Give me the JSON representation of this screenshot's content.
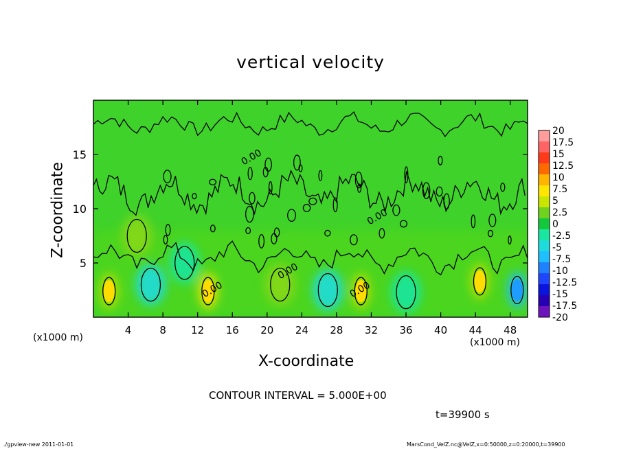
{
  "chart_data": {
    "type": "heatmap",
    "title": "vertical velocity",
    "xlabel": "X-coordinate",
    "ylabel": "Z-coordinate",
    "x_unit_left": "(x1000 m)",
    "x_unit_right": "(x1000 m)",
    "xlim": [
      0,
      50
    ],
    "ylim": [
      0,
      20
    ],
    "x_ticks": [
      4,
      8,
      12,
      16,
      20,
      24,
      28,
      32,
      36,
      40,
      44,
      48
    ],
    "y_ticks": [
      5,
      10,
      15
    ],
    "contour_interval_text": "CONTOUR INTERVAL = 5.000E+00",
    "contour_labels": [
      {
        "text": "0.00",
        "x": 17.3,
        "y": 14.0
      },
      {
        "text": "0.00",
        "x": 12.8,
        "y": 1.8
      },
      {
        "text": "0.00",
        "x": 21.5,
        "y": 3.5
      },
      {
        "text": "0.00",
        "x": 29.8,
        "y": 1.8
      },
      {
        "text": "0.00",
        "x": 31.8,
        "y": 8.5
      }
    ],
    "colorbar": {
      "levels": [
        "20",
        "17.5",
        "15",
        "12.5",
        "10",
        "7.5",
        "5",
        "2.5",
        "0",
        "-2.5",
        "-5",
        "-7.5",
        "-10",
        "-12.5",
        "-15",
        "-17.5",
        "-20"
      ],
      "colors": [
        "#ff9c9c",
        "#ff6464",
        "#ff3a1a",
        "#ff6a00",
        "#ffb400",
        "#ffe600",
        "#c8e600",
        "#6ed21e",
        "#14c83c",
        "#19e6a0",
        "#1edcdc",
        "#1ebeff",
        "#1e82ff",
        "#1e46ff",
        "#0a14dc",
        "#2800b4",
        "#6e14be"
      ]
    },
    "field_features": [
      {
        "kind": "updraft",
        "x": 1.8,
        "y": 2.4,
        "peak": 6
      },
      {
        "kind": "updraft",
        "x": 13.2,
        "y": 2.4,
        "peak": 8
      },
      {
        "kind": "updraft",
        "x": 30.8,
        "y": 2.4,
        "peak": 6
      },
      {
        "kind": "updraft",
        "x": 44.5,
        "y": 3.3,
        "peak": 7
      },
      {
        "kind": "updraft",
        "x": 21.5,
        "y": 3.0,
        "peak": 4
      },
      {
        "kind": "updraft",
        "x": 5.0,
        "y": 7.5,
        "peak": 3
      },
      {
        "kind": "downdraft",
        "x": 48.8,
        "y": 2.5,
        "peak": -7
      },
      {
        "kind": "downdraft",
        "x": 6.6,
        "y": 3.0,
        "peak": -5
      },
      {
        "kind": "downdraft",
        "x": 27.0,
        "y": 2.5,
        "peak": -4
      },
      {
        "kind": "downdraft",
        "x": 36.0,
        "y": 2.3,
        "peak": -3.5
      },
      {
        "kind": "downdraft",
        "x": 10.5,
        "y": 5.0,
        "peak": -2.5
      }
    ]
  },
  "time_text": "t=39900 s",
  "footer": {
    "left": "./gpview-new  2011-01-01",
    "right": "MarsCond_VelZ.nc@VelZ,x=0:50000,z=0:20000,t=39900"
  }
}
